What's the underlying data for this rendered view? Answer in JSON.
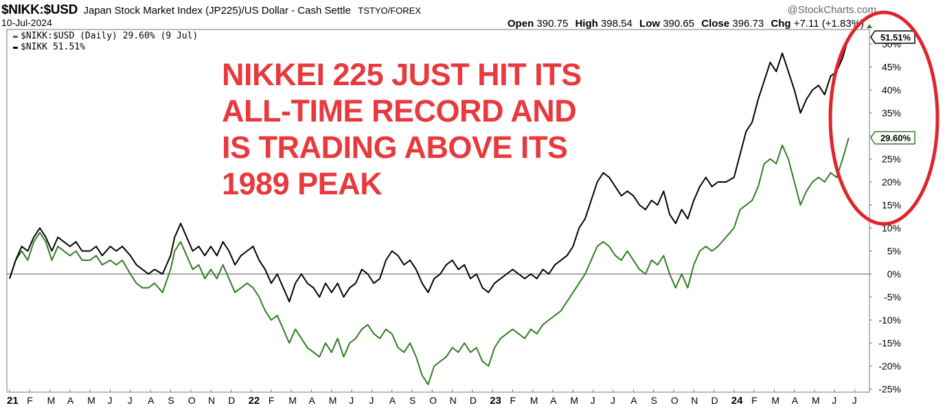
{
  "header": {
    "ticker": "$NIKK:$USD",
    "description": "Japan Stock Market Index (JP225)/US Dollar - Cash Settle",
    "exchange": "TSTYO/FOREX",
    "date": "10-Jul-2024",
    "brand": "@StockCharts.com",
    "ohlc": {
      "open_label": "Open",
      "open": "390.75",
      "high_label": "High",
      "high": "398.54",
      "low_label": "Low",
      "low": "390.65",
      "close_label": "Close",
      "close": "396.73",
      "chg_label": "Chg",
      "chg": "+7.11 (+1.83%)"
    }
  },
  "legend": {
    "items": [
      {
        "label": "$NIKK:$USD (Daily) 29.60% (9 Jul)",
        "color": "#2e7d1f"
      },
      {
        "label": "$NIKK 51.51%",
        "color": "#000000"
      }
    ]
  },
  "annotation": {
    "lines": [
      "NIKKEI 225 JUST HIT ITS",
      "ALL-TIME RECORD AND",
      "IS TRADING ABOVE ITS",
      "1989 PEAK"
    ],
    "color": "#e8393d",
    "highlight_color": "#e0242b"
  },
  "chart_data": {
    "type": "line",
    "y_unit": "%",
    "ylim": [
      -26,
      52
    ],
    "y_ticks": [
      -25,
      -20,
      -15,
      -10,
      -5,
      0,
      5,
      10,
      15,
      20,
      25,
      30,
      35,
      40,
      45,
      50
    ],
    "y_tick_labels": [
      "-25%",
      "-20%",
      "-15%",
      "-10%",
      "-5%",
      "0%",
      "5%",
      "10%",
      "15%",
      "20%",
      "25%",
      "30%",
      "35%",
      "40%",
      "45%",
      "50%"
    ],
    "zero_line": true,
    "grid": false,
    "x_tick_labels": [
      "21",
      "F",
      "M",
      "A",
      "M",
      "J",
      "J",
      "A",
      "S",
      "O",
      "N",
      "D",
      "22",
      "F",
      "M",
      "A",
      "M",
      "J",
      "J",
      "A",
      "S",
      "O",
      "N",
      "D",
      "23",
      "F",
      "M",
      "A",
      "M",
      "J",
      "J",
      "A",
      "S",
      "O",
      "N",
      "D",
      "24",
      "F",
      "M",
      "A",
      "M",
      "J",
      "J"
    ],
    "x_range_months": [
      0,
      42.3
    ],
    "series": [
      {
        "name": "$NIKK",
        "color": "#000000",
        "last_label": "51.51%",
        "points": [
          [
            0,
            -1
          ],
          [
            0.3,
            3
          ],
          [
            0.6,
            6
          ],
          [
            0.9,
            5
          ],
          [
            1.2,
            8
          ],
          [
            1.5,
            10
          ],
          [
            1.8,
            8
          ],
          [
            2.1,
            5
          ],
          [
            2.4,
            8
          ],
          [
            2.7,
            7
          ],
          [
            3,
            6
          ],
          [
            3.3,
            7
          ],
          [
            3.6,
            5
          ],
          [
            4,
            5
          ],
          [
            4.3,
            6
          ],
          [
            4.6,
            4
          ],
          [
            5,
            6
          ],
          [
            5.3,
            5
          ],
          [
            5.6,
            6
          ],
          [
            6,
            4
          ],
          [
            6.3,
            2
          ],
          [
            6.6,
            1
          ],
          [
            6.9,
            0
          ],
          [
            7.2,
            1
          ],
          [
            7.6,
            0
          ],
          [
            8,
            4
          ],
          [
            8.2,
            8
          ],
          [
            8.5,
            11
          ],
          [
            8.8,
            8
          ],
          [
            9.1,
            5
          ],
          [
            9.4,
            6
          ],
          [
            9.7,
            4
          ],
          [
            10,
            6
          ],
          [
            10.3,
            4
          ],
          [
            10.6,
            7
          ],
          [
            10.9,
            5
          ],
          [
            11.2,
            2
          ],
          [
            11.5,
            4
          ],
          [
            11.8,
            5
          ],
          [
            12.1,
            6
          ],
          [
            12.4,
            3
          ],
          [
            12.7,
            1
          ],
          [
            13,
            -2
          ],
          [
            13.3,
            0
          ],
          [
            13.6,
            -3
          ],
          [
            13.9,
            -6
          ],
          [
            14.2,
            -2
          ],
          [
            14.5,
            0
          ],
          [
            14.8,
            -2
          ],
          [
            15.1,
            -3
          ],
          [
            15.4,
            -5
          ],
          [
            15.7,
            -2
          ],
          [
            16,
            -4
          ],
          [
            16.3,
            -2
          ],
          [
            16.6,
            -5
          ],
          [
            16.9,
            -3
          ],
          [
            17.2,
            -2
          ],
          [
            17.5,
            1
          ],
          [
            17.8,
            0
          ],
          [
            18.1,
            -2
          ],
          [
            18.4,
            -1
          ],
          [
            18.7,
            3
          ],
          [
            19,
            5
          ],
          [
            19.3,
            4
          ],
          [
            19.6,
            2
          ],
          [
            19.9,
            3
          ],
          [
            20.2,
            1
          ],
          [
            20.5,
            -2
          ],
          [
            20.8,
            -4
          ],
          [
            21.1,
            -1
          ],
          [
            21.4,
            0
          ],
          [
            21.7,
            2
          ],
          [
            22,
            3
          ],
          [
            22.3,
            1
          ],
          [
            22.6,
            2
          ],
          [
            22.9,
            -1
          ],
          [
            23.2,
            0
          ],
          [
            23.5,
            -3
          ],
          [
            23.8,
            -4
          ],
          [
            24.1,
            -2
          ],
          [
            24.4,
            -1
          ],
          [
            24.7,
            0
          ],
          [
            25,
            1
          ],
          [
            25.3,
            0
          ],
          [
            25.6,
            -1
          ],
          [
            25.9,
            0
          ],
          [
            26.2,
            -1
          ],
          [
            26.5,
            1
          ],
          [
            26.8,
            0
          ],
          [
            27.1,
            2
          ],
          [
            27.4,
            3
          ],
          [
            27.7,
            4
          ],
          [
            28,
            6
          ],
          [
            28.3,
            10
          ],
          [
            28.6,
            12
          ],
          [
            28.9,
            16
          ],
          [
            29.2,
            20
          ],
          [
            29.5,
            22
          ],
          [
            29.8,
            21
          ],
          [
            30.1,
            19
          ],
          [
            30.4,
            17
          ],
          [
            30.7,
            18
          ],
          [
            31,
            17
          ],
          [
            31.3,
            15
          ],
          [
            31.6,
            14
          ],
          [
            31.9,
            16
          ],
          [
            32.2,
            15
          ],
          [
            32.5,
            18
          ],
          [
            32.8,
            13
          ],
          [
            33.1,
            11
          ],
          [
            33.4,
            14
          ],
          [
            33.7,
            12
          ],
          [
            34,
            16
          ],
          [
            34.3,
            19
          ],
          [
            34.6,
            21
          ],
          [
            34.9,
            19
          ],
          [
            35.2,
            20
          ],
          [
            35.6,
            20
          ],
          [
            36,
            21
          ],
          [
            36.3,
            26
          ],
          [
            36.6,
            31
          ],
          [
            36.9,
            33
          ],
          [
            37.2,
            38
          ],
          [
            37.5,
            42
          ],
          [
            37.8,
            46
          ],
          [
            38.1,
            44
          ],
          [
            38.4,
            48
          ],
          [
            38.7,
            44
          ],
          [
            39,
            40
          ],
          [
            39.3,
            35
          ],
          [
            39.6,
            38
          ],
          [
            39.9,
            40
          ],
          [
            40.2,
            41
          ],
          [
            40.5,
            39
          ],
          [
            40.8,
            43
          ],
          [
            41.1,
            44
          ],
          [
            41.4,
            47
          ],
          [
            41.7,
            51.5
          ]
        ]
      },
      {
        "name": "$NIKK:$USD",
        "color": "#2e7d1f",
        "last_label": "29.60%",
        "points": [
          [
            0,
            -1
          ],
          [
            0.3,
            3
          ],
          [
            0.6,
            5
          ],
          [
            0.9,
            3
          ],
          [
            1.2,
            7
          ],
          [
            1.5,
            9
          ],
          [
            1.8,
            7
          ],
          [
            2.1,
            3
          ],
          [
            2.4,
            6
          ],
          [
            2.7,
            5
          ],
          [
            3,
            4
          ],
          [
            3.3,
            5
          ],
          [
            3.6,
            3
          ],
          [
            4,
            3
          ],
          [
            4.3,
            4
          ],
          [
            4.6,
            2
          ],
          [
            5,
            3
          ],
          [
            5.3,
            2
          ],
          [
            5.6,
            3
          ],
          [
            6,
            0
          ],
          [
            6.3,
            -2
          ],
          [
            6.6,
            -3
          ],
          [
            6.9,
            -3
          ],
          [
            7.2,
            -2
          ],
          [
            7.6,
            -4
          ],
          [
            8,
            1
          ],
          [
            8.2,
            5
          ],
          [
            8.5,
            7
          ],
          [
            8.8,
            4
          ],
          [
            9.1,
            1
          ],
          [
            9.4,
            2
          ],
          [
            9.7,
            -1
          ],
          [
            10,
            1
          ],
          [
            10.3,
            -1
          ],
          [
            10.6,
            2
          ],
          [
            10.9,
            -1
          ],
          [
            11.2,
            -4
          ],
          [
            11.5,
            -3
          ],
          [
            11.8,
            -2
          ],
          [
            12.1,
            -3
          ],
          [
            12.4,
            -5
          ],
          [
            12.7,
            -8
          ],
          [
            13,
            -10
          ],
          [
            13.3,
            -9
          ],
          [
            13.6,
            -12
          ],
          [
            13.9,
            -15
          ],
          [
            14.2,
            -12
          ],
          [
            14.5,
            -14
          ],
          [
            14.8,
            -16
          ],
          [
            15.1,
            -17
          ],
          [
            15.4,
            -18
          ],
          [
            15.7,
            -15
          ],
          [
            16,
            -17
          ],
          [
            16.3,
            -14
          ],
          [
            16.6,
            -18
          ],
          [
            16.9,
            -15
          ],
          [
            17.2,
            -14
          ],
          [
            17.5,
            -12
          ],
          [
            17.8,
            -11
          ],
          [
            18.1,
            -13
          ],
          [
            18.4,
            -14
          ],
          [
            18.7,
            -12
          ],
          [
            19,
            -13
          ],
          [
            19.3,
            -16
          ],
          [
            19.6,
            -17
          ],
          [
            19.9,
            -15
          ],
          [
            20.2,
            -18
          ],
          [
            20.5,
            -22
          ],
          [
            20.8,
            -24
          ],
          [
            21.1,
            -20
          ],
          [
            21.4,
            -19
          ],
          [
            21.7,
            -18
          ],
          [
            22,
            -16
          ],
          [
            22.3,
            -17
          ],
          [
            22.6,
            -15
          ],
          [
            22.9,
            -17
          ],
          [
            23.2,
            -16
          ],
          [
            23.5,
            -19
          ],
          [
            23.8,
            -20
          ],
          [
            24.1,
            -16
          ],
          [
            24.4,
            -14
          ],
          [
            24.7,
            -13
          ],
          [
            25,
            -12
          ],
          [
            25.3,
            -13
          ],
          [
            25.6,
            -14
          ],
          [
            25.9,
            -12
          ],
          [
            26.2,
            -13
          ],
          [
            26.5,
            -11
          ],
          [
            26.8,
            -10
          ],
          [
            27.1,
            -9
          ],
          [
            27.4,
            -8
          ],
          [
            27.7,
            -6
          ],
          [
            28,
            -4
          ],
          [
            28.3,
            -2
          ],
          [
            28.6,
            0
          ],
          [
            28.9,
            3
          ],
          [
            29.2,
            6
          ],
          [
            29.5,
            7
          ],
          [
            29.8,
            6
          ],
          [
            30.1,
            4
          ],
          [
            30.4,
            3
          ],
          [
            30.7,
            5
          ],
          [
            31,
            3
          ],
          [
            31.3,
            1
          ],
          [
            31.6,
            0
          ],
          [
            31.9,
            3
          ],
          [
            32.2,
            2
          ],
          [
            32.5,
            4
          ],
          [
            32.8,
            0
          ],
          [
            33.1,
            -3
          ],
          [
            33.4,
            0
          ],
          [
            33.7,
            -3
          ],
          [
            34,
            2
          ],
          [
            34.3,
            5
          ],
          [
            34.6,
            6
          ],
          [
            34.9,
            5
          ],
          [
            35.2,
            6
          ],
          [
            35.6,
            8
          ],
          [
            36,
            10
          ],
          [
            36.3,
            14
          ],
          [
            36.6,
            15
          ],
          [
            36.9,
            16
          ],
          [
            37.2,
            19
          ],
          [
            37.5,
            24
          ],
          [
            37.8,
            25
          ],
          [
            38.1,
            24
          ],
          [
            38.4,
            28
          ],
          [
            38.7,
            25
          ],
          [
            39,
            20
          ],
          [
            39.3,
            15
          ],
          [
            39.6,
            18
          ],
          [
            39.9,
            20
          ],
          [
            40.2,
            21
          ],
          [
            40.5,
            20
          ],
          [
            40.8,
            22
          ],
          [
            41.1,
            21
          ],
          [
            41.4,
            25
          ],
          [
            41.7,
            29.6
          ]
        ]
      }
    ]
  }
}
